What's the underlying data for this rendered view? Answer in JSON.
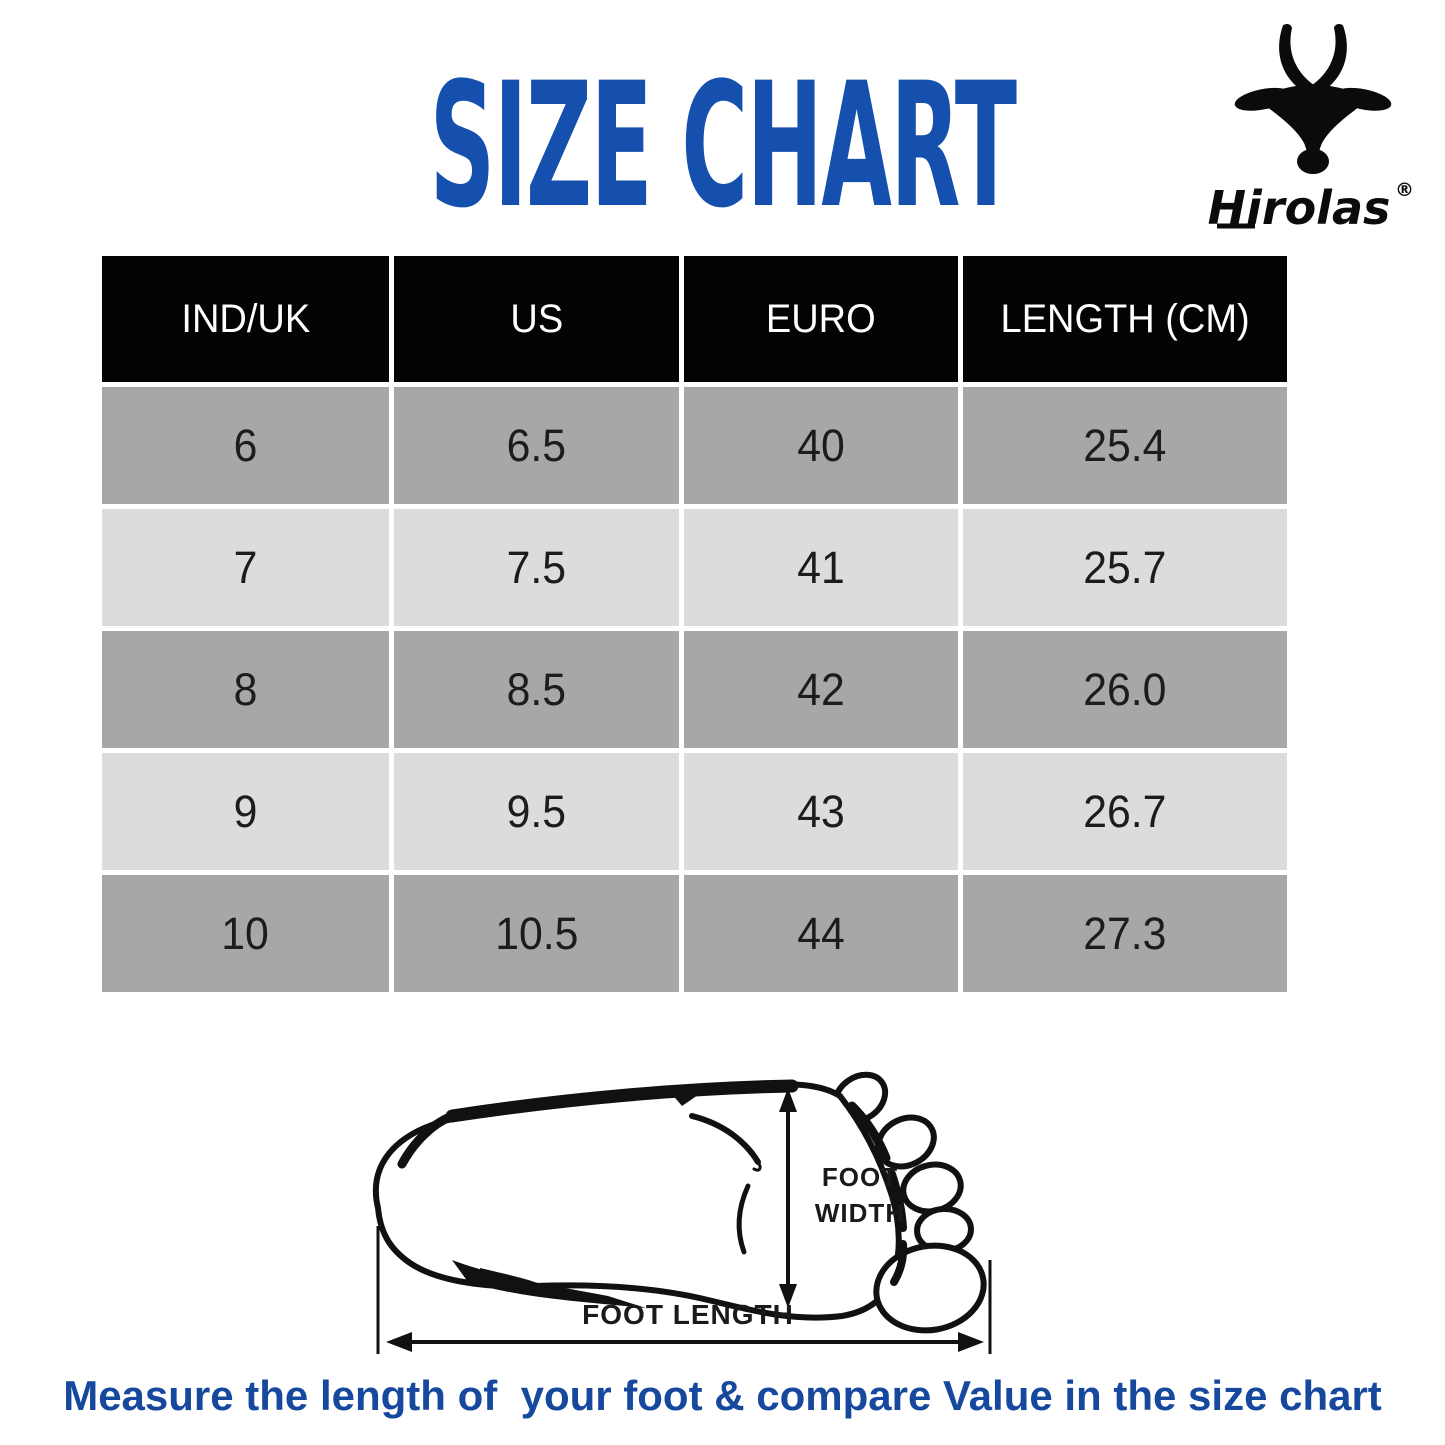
{
  "title": "SIZE CHART",
  "brand": {
    "name": "Hirolas",
    "reg": "®",
    "icon": "antelope-head-icon"
  },
  "table": {
    "headers": [
      "IND/UK",
      "US",
      "EURO",
      "LENGTH (CM)"
    ],
    "rows": [
      [
        "6",
        "6.5",
        "40",
        "25.4"
      ],
      [
        "7",
        "7.5",
        "41",
        "25.7"
      ],
      [
        "8",
        "8.5",
        "42",
        "26.0"
      ],
      [
        "9",
        "9.5",
        "43",
        "26.7"
      ],
      [
        "10",
        "10.5",
        "44",
        "27.3"
      ]
    ]
  },
  "chart_data": {
    "type": "table",
    "title": "SIZE CHART",
    "columns": [
      "IND/UK",
      "US",
      "EURO",
      "LENGTH (CM)"
    ],
    "rows": [
      [
        6,
        6.5,
        40,
        25.4
      ],
      [
        7,
        7.5,
        41,
        25.7
      ],
      [
        8,
        8.5,
        42,
        26.0
      ],
      [
        9,
        9.5,
        43,
        26.7
      ],
      [
        10,
        10.5,
        44,
        27.3
      ]
    ]
  },
  "diagram": {
    "width_label": [
      "FOOT",
      "WIDTH"
    ],
    "length_label": "FOOT LENGTH"
  },
  "caption": "Measure the length of  your foot & compare Value in the size chart",
  "colors": {
    "title_blue": "#1550af",
    "caption_blue": "#16489e",
    "header_bg": "#030303",
    "row_dark": "#a7a7a7",
    "row_light": "#dcdcdc"
  }
}
